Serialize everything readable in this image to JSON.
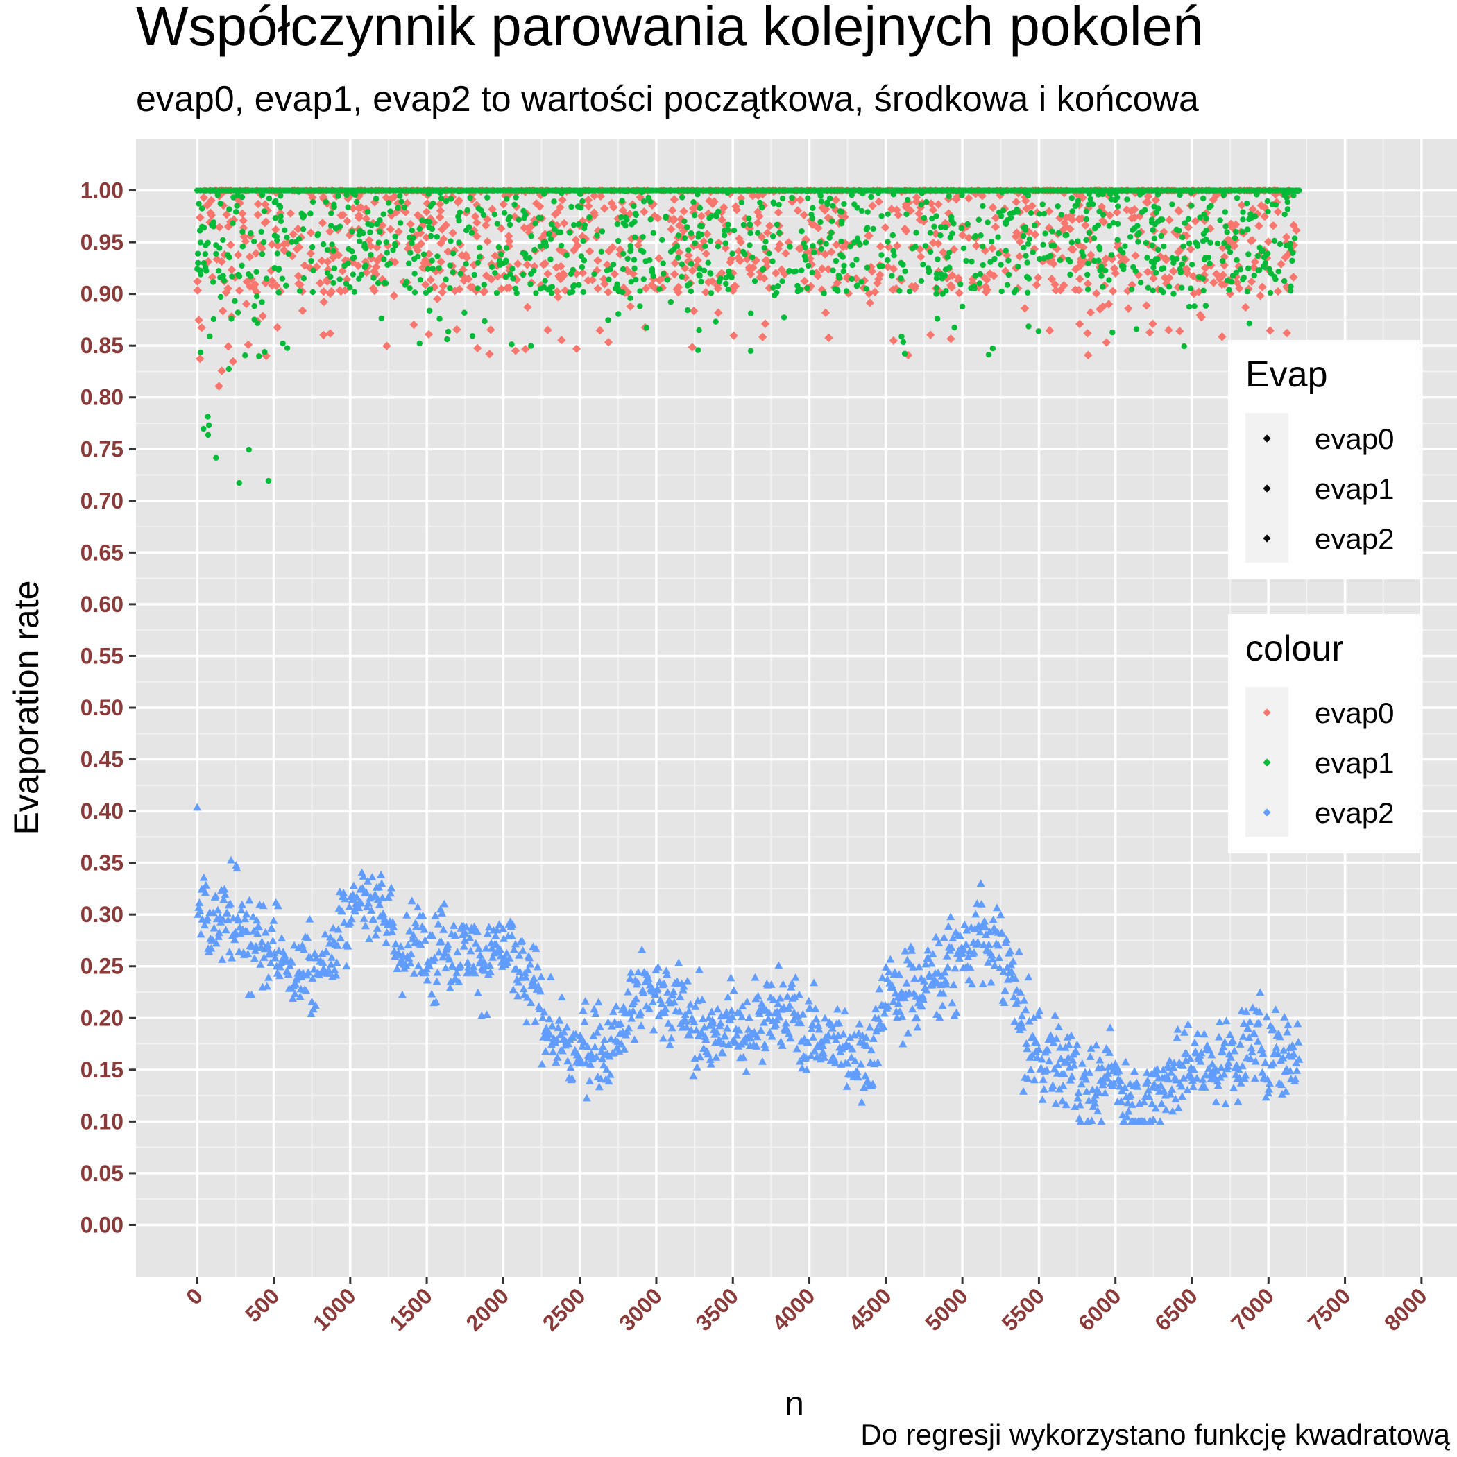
{
  "chart_data": {
    "type": "scatter",
    "title": "Współczynnik parowania kolejnych pokoleń",
    "subtitle": "evap0, evap1, evap2 to wartości początkowa, środkowa i końcowa",
    "caption": "Do regresji wykorzystano funkcję kwadratową",
    "xlabel": "n",
    "ylabel": "Evaporation rate",
    "xlim": [
      -400,
      8250
    ],
    "ylim": [
      -0.05,
      1.05
    ],
    "x_ticks": [
      "0",
      "500",
      "1000",
      "1500",
      "2000",
      "2500",
      "3000",
      "3500",
      "4000",
      "4500",
      "5000",
      "5500",
      "6000",
      "6500",
      "7000",
      "7500",
      "8000"
    ],
    "y_ticks": [
      "0.00",
      "0.05",
      "0.10",
      "0.15",
      "0.20",
      "0.25",
      "0.30",
      "0.35",
      "0.40",
      "0.45",
      "0.50",
      "0.55",
      "0.60",
      "0.65",
      "0.70",
      "0.75",
      "0.80",
      "0.85",
      "0.90",
      "0.95",
      "1.00"
    ],
    "n_points_per_series": 7200,
    "grid": true,
    "legend_position": "right",
    "series": [
      {
        "name": "evap0",
        "shape": "diamond",
        "color": "#F8766D",
        "summary": {
          "x_range": [
            0,
            7200
          ],
          "min": 0.81,
          "max": 1.0,
          "typical_range": [
            0.9,
            1.0
          ]
        }
      },
      {
        "name": "evap1",
        "shape": "circle",
        "color": "#00BA38",
        "summary": {
          "x_range": [
            0,
            7200
          ],
          "min": 0.715,
          "max": 1.0,
          "typical_range": [
            0.9,
            1.0
          ]
        }
      },
      {
        "name": "evap2",
        "shape": "triangle",
        "color": "#619CFF",
        "trend": {
          "x": [
            0,
            100,
            250,
            400,
            500,
            650,
            800,
            950,
            1100,
            1200,
            1300,
            1450,
            1600,
            1800,
            2000,
            2200,
            2400,
            2500,
            2700,
            2900,
            3100,
            3300,
            3500,
            3700,
            3900,
            4100,
            4300,
            4400,
            4500,
            4700,
            4900,
            5100,
            5300,
            5400,
            5600,
            5800,
            6000,
            6100,
            6200,
            6300,
            6500,
            6700,
            6900,
            7100,
            7200
          ],
          "y": [
            0.31,
            0.3,
            0.29,
            0.27,
            0.26,
            0.24,
            0.25,
            0.3,
            0.31,
            0.32,
            0.26,
            0.27,
            0.28,
            0.27,
            0.26,
            0.22,
            0.17,
            0.165,
            0.18,
            0.23,
            0.22,
            0.185,
            0.19,
            0.21,
            0.2,
            0.18,
            0.17,
            0.165,
            0.23,
            0.23,
            0.25,
            0.28,
            0.25,
            0.18,
            0.16,
            0.14,
            0.14,
            0.12,
            0.115,
            0.145,
            0.155,
            0.16,
            0.175,
            0.17,
            0.165
          ]
        },
        "summary": {
          "x_range": [
            0,
            7200
          ],
          "min": 0.1,
          "max": 0.435
        }
      }
    ],
    "legends": [
      {
        "title": "Evap",
        "entries": [
          "evap0",
          "evap1",
          "evap2"
        ],
        "colors": [
          "#000000",
          "#000000",
          "#000000"
        ]
      },
      {
        "title": "colour",
        "entries": [
          "evap0",
          "evap1",
          "evap2"
        ],
        "colors": [
          "#F8766D",
          "#00BA38",
          "#619CFF"
        ]
      }
    ]
  }
}
